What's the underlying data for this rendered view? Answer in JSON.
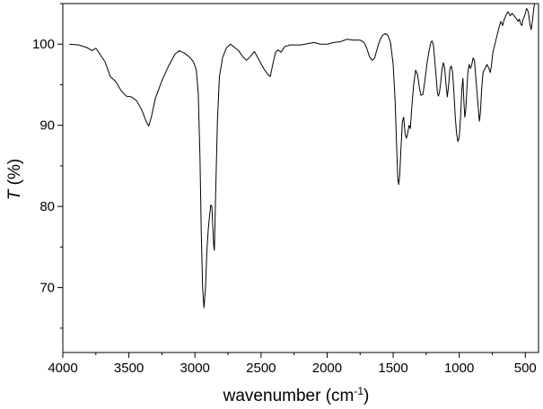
{
  "chart_data": {
    "type": "line",
    "title": "",
    "xlabel_text": "wavenumber (cm",
    "xlabel_sup": "-1",
    "xlabel_close": ")",
    "ylabel_italic": "T",
    "ylabel_rest": " (%)",
    "xlim": [
      4000,
      400
    ],
    "ylim": [
      62,
      105
    ],
    "x_direction": "reversed",
    "grid": false,
    "legend": "none",
    "line_color": "#000000",
    "xticks": [
      4000,
      3500,
      3000,
      2500,
      2000,
      1500,
      1000,
      500
    ],
    "xtick_labels": [
      "4000",
      "3500",
      "3000",
      "2500",
      "2000",
      "1500",
      "1000",
      "500"
    ],
    "yticks": [
      70,
      80,
      90,
      100
    ],
    "ytick_labels": [
      "70",
      "80",
      "90",
      "100"
    ],
    "series": [
      {
        "points": [
          [
            3950,
            100
          ],
          [
            3880,
            99.9
          ],
          [
            3820,
            99.6
          ],
          [
            3780,
            99.2
          ],
          [
            3750,
            99.5
          ],
          [
            3720,
            98.8
          ],
          [
            3680,
            97.8
          ],
          [
            3640,
            96.0
          ],
          [
            3600,
            95.4
          ],
          [
            3560,
            94.3
          ],
          [
            3520,
            93.6
          ],
          [
            3480,
            93.5
          ],
          [
            3440,
            93.0
          ],
          [
            3400,
            91.8
          ],
          [
            3370,
            90.5
          ],
          [
            3350,
            89.9
          ],
          [
            3330,
            91.0
          ],
          [
            3300,
            93.3
          ],
          [
            3250,
            95.5
          ],
          [
            3200,
            97.3
          ],
          [
            3150,
            98.8
          ],
          [
            3120,
            99.2
          ],
          [
            3080,
            98.9
          ],
          [
            3040,
            98.4
          ],
          [
            3010,
            97.8
          ],
          [
            2990,
            96.8
          ],
          [
            2975,
            94.0
          ],
          [
            2962,
            86.0
          ],
          [
            2952,
            76.5
          ],
          [
            2942,
            70.0
          ],
          [
            2932,
            67.5
          ],
          [
            2920,
            70.0
          ],
          [
            2910,
            74.5
          ],
          [
            2900,
            77.0
          ],
          [
            2890,
            78.8
          ],
          [
            2880,
            80.2
          ],
          [
            2872,
            80.0
          ],
          [
            2865,
            77.5
          ],
          [
            2858,
            75.2
          ],
          [
            2853,
            74.6
          ],
          [
            2845,
            80.5
          ],
          [
            2830,
            90.5
          ],
          [
            2815,
            96.0
          ],
          [
            2790,
            98.4
          ],
          [
            2760,
            99.6
          ],
          [
            2730,
            100.0
          ],
          [
            2700,
            99.6
          ],
          [
            2670,
            99.2
          ],
          [
            2640,
            98.5
          ],
          [
            2610,
            98.0
          ],
          [
            2580,
            98.5
          ],
          [
            2550,
            99.1
          ],
          [
            2520,
            98.2
          ],
          [
            2480,
            97.0
          ],
          [
            2450,
            96.3
          ],
          [
            2430,
            96.0
          ],
          [
            2410,
            97.6
          ],
          [
            2390,
            99.0
          ],
          [
            2370,
            99.3
          ],
          [
            2350,
            99.0
          ],
          [
            2320,
            99.7
          ],
          [
            2280,
            99.9
          ],
          [
            2200,
            99.9
          ],
          [
            2100,
            100.2
          ],
          [
            2050,
            100.0
          ],
          [
            2000,
            100.0
          ],
          [
            1950,
            100.2
          ],
          [
            1900,
            100.3
          ],
          [
            1850,
            100.6
          ],
          [
            1800,
            100.5
          ],
          [
            1750,
            100.5
          ],
          [
            1720,
            100.2
          ],
          [
            1700,
            99.5
          ],
          [
            1680,
            98.5
          ],
          [
            1660,
            98.0
          ],
          [
            1640,
            98.3
          ],
          [
            1620,
            99.5
          ],
          [
            1600,
            100.5
          ],
          [
            1580,
            101.1
          ],
          [
            1560,
            101.3
          ],
          [
            1540,
            101.1
          ],
          [
            1520,
            100.2
          ],
          [
            1500,
            97.5
          ],
          [
            1485,
            93.0
          ],
          [
            1475,
            88.0
          ],
          [
            1465,
            83.5
          ],
          [
            1458,
            82.7
          ],
          [
            1450,
            84.0
          ],
          [
            1440,
            87.5
          ],
          [
            1430,
            90.5
          ],
          [
            1420,
            91.0
          ],
          [
            1410,
            89.0
          ],
          [
            1400,
            88.4
          ],
          [
            1390,
            89.0
          ],
          [
            1380,
            90.0
          ],
          [
            1370,
            89.6
          ],
          [
            1360,
            92.0
          ],
          [
            1345,
            95.0
          ],
          [
            1330,
            96.8
          ],
          [
            1315,
            96.2
          ],
          [
            1300,
            94.5
          ],
          [
            1290,
            93.7
          ],
          [
            1275,
            93.8
          ],
          [
            1260,
            95.5
          ],
          [
            1245,
            97.5
          ],
          [
            1230,
            99.0
          ],
          [
            1215,
            100.2
          ],
          [
            1205,
            100.4
          ],
          [
            1195,
            99.8
          ],
          [
            1185,
            98.0
          ],
          [
            1175,
            96.0
          ],
          [
            1165,
            94.0
          ],
          [
            1158,
            93.6
          ],
          [
            1150,
            94.0
          ],
          [
            1140,
            95.3
          ],
          [
            1130,
            97.0
          ],
          [
            1120,
            97.7
          ],
          [
            1110,
            97.0
          ],
          [
            1100,
            95.0
          ],
          [
            1090,
            93.5
          ],
          [
            1080,
            95.0
          ],
          [
            1070,
            97.0
          ],
          [
            1060,
            97.3
          ],
          [
            1050,
            96.5
          ],
          [
            1040,
            94.0
          ],
          [
            1030,
            91.0
          ],
          [
            1020,
            89.0
          ],
          [
            1010,
            88.0
          ],
          [
            1000,
            88.5
          ],
          [
            990,
            91.0
          ],
          [
            980,
            94.5
          ],
          [
            972,
            95.8
          ],
          [
            965,
            93.0
          ],
          [
            958,
            91.0
          ],
          [
            950,
            92.0
          ],
          [
            942,
            94.5
          ],
          [
            935,
            96.5
          ],
          [
            925,
            97.5
          ],
          [
            915,
            97.0
          ],
          [
            905,
            97.5
          ],
          [
            895,
            98.3
          ],
          [
            885,
            98.0
          ],
          [
            875,
            96.0
          ],
          [
            865,
            94.0
          ],
          [
            855,
            92.0
          ],
          [
            848,
            90.5
          ],
          [
            840,
            91.5
          ],
          [
            830,
            94.5
          ],
          [
            820,
            96.5
          ],
          [
            805,
            97.0
          ],
          [
            790,
            97.5
          ],
          [
            775,
            97.0
          ],
          [
            765,
            96.5
          ],
          [
            755,
            97.5
          ],
          [
            745,
            99.0
          ],
          [
            730,
            100.0
          ],
          [
            715,
            101.0
          ],
          [
            700,
            102.0
          ],
          [
            685,
            102.8
          ],
          [
            672,
            102.3
          ],
          [
            660,
            103.0
          ],
          [
            645,
            103.6
          ],
          [
            630,
            104.0
          ],
          [
            615,
            103.5
          ],
          [
            600,
            103.8
          ],
          [
            585,
            103.5
          ],
          [
            570,
            103.2
          ],
          [
            555,
            102.8
          ],
          [
            545,
            103.1
          ],
          [
            535,
            102.5
          ],
          [
            525,
            102.3
          ],
          [
            518,
            103.0
          ],
          [
            505,
            103.5
          ],
          [
            490,
            104.4
          ],
          [
            478,
            104.0
          ],
          [
            465,
            102.5
          ],
          [
            455,
            101.8
          ],
          [
            445,
            103.0
          ],
          [
            437,
            104.2
          ],
          [
            430,
            105.0
          ]
        ]
      }
    ]
  }
}
